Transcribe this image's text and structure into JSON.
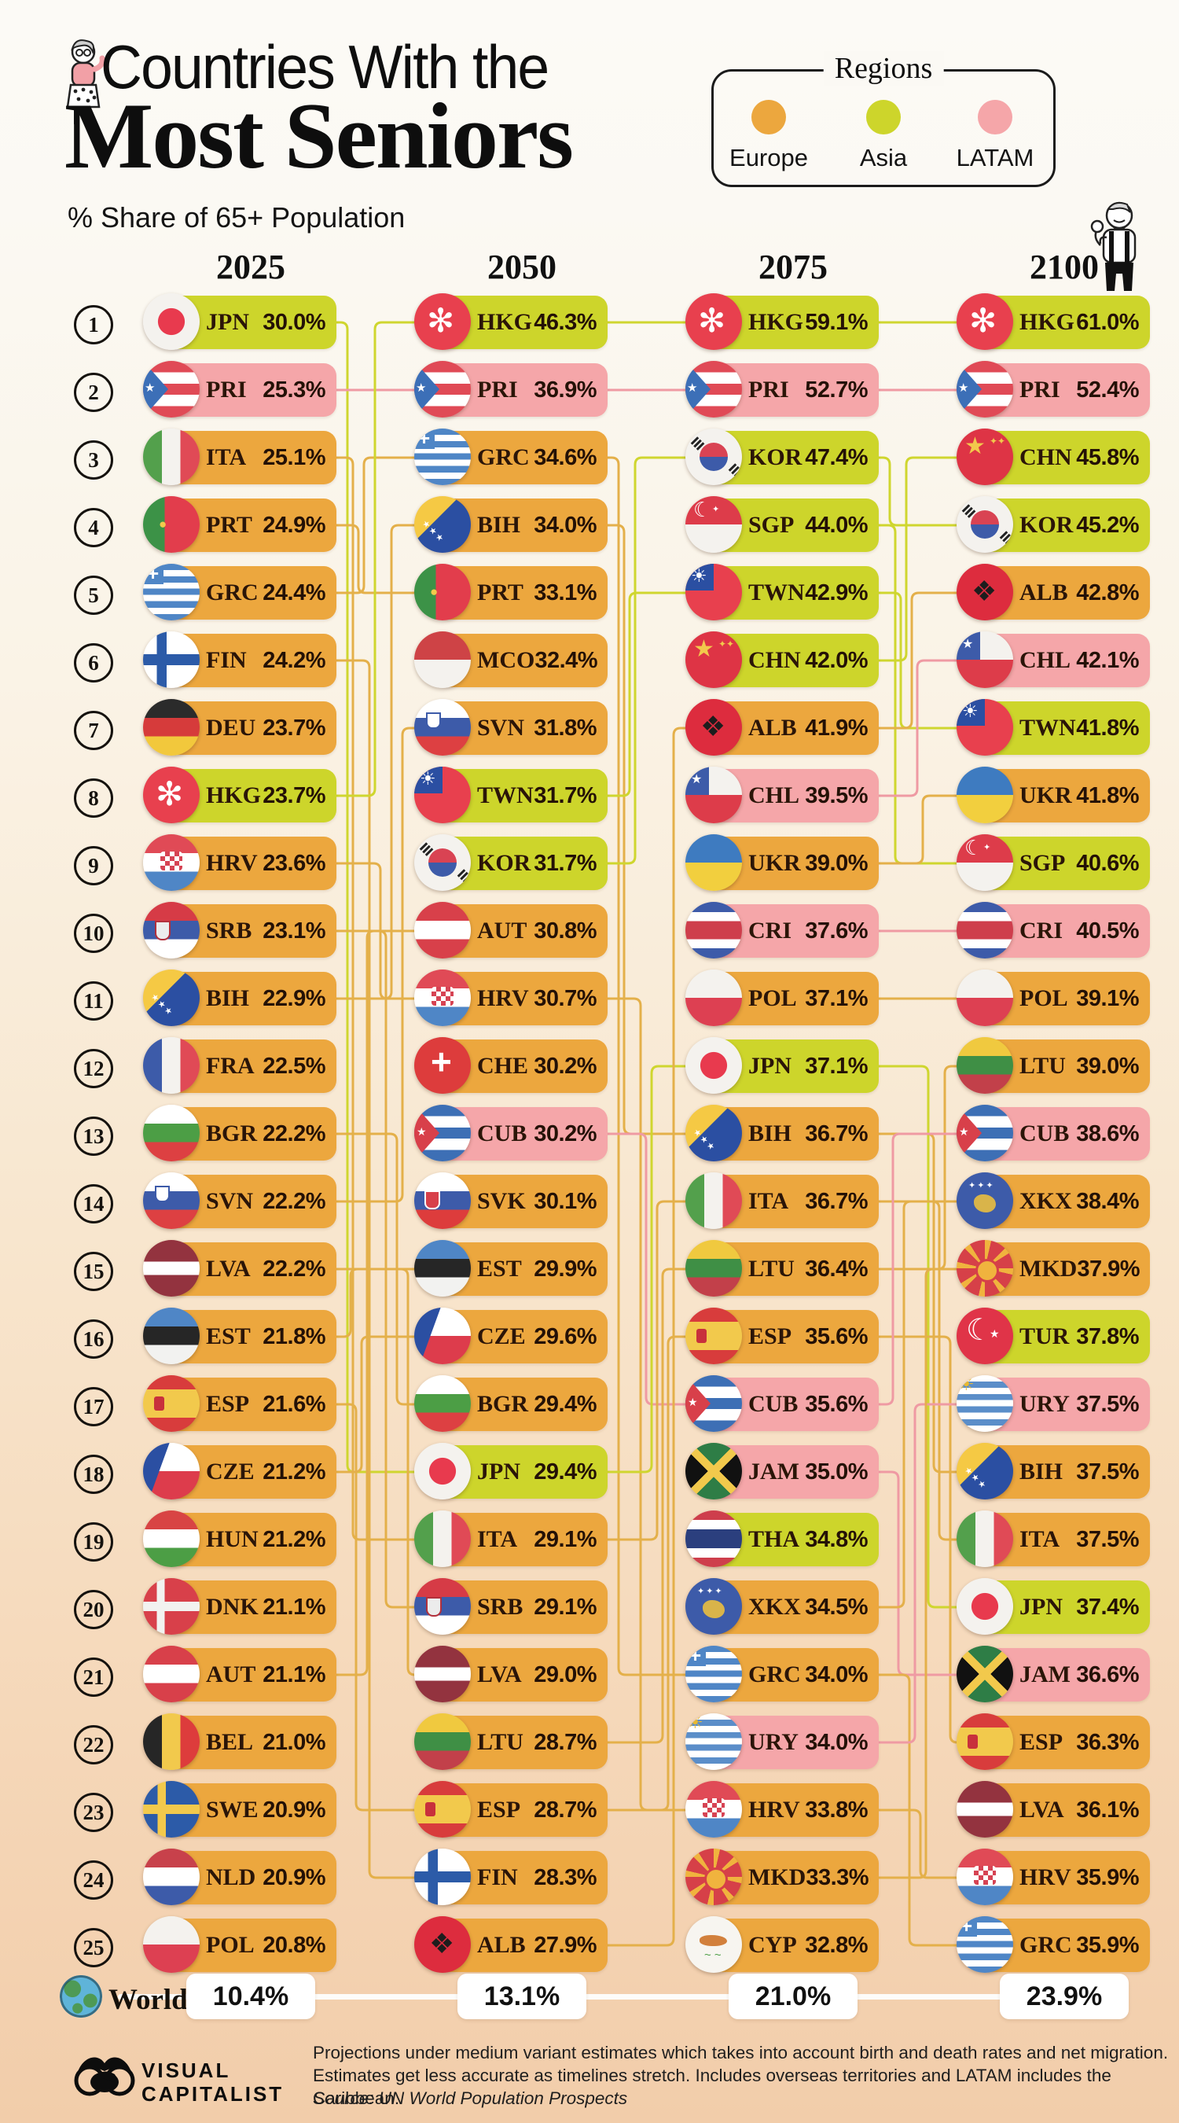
{
  "header": {
    "title_line1": "Countries With the",
    "title_line2": "Most Seniors",
    "subtitle": "% Share of 65+ Population",
    "legend": {
      "title": "Regions",
      "items": [
        {
          "label": "Europe",
          "region": "europe"
        },
        {
          "label": "Asia",
          "region": "asia"
        },
        {
          "label": "LATAM",
          "region": "latam"
        }
      ]
    }
  },
  "colors": {
    "europe": "#ECA73E",
    "asia": "#CDD52B",
    "latam": "#F5A6A9",
    "line_europe": "#E4B04A",
    "line_asia": "#CFD62F",
    "line_latam": "#EF9AA3",
    "text": "#2B1508",
    "background_top": "#FCFAF6",
    "background_bottom": "#F2CDAA"
  },
  "chart_data": {
    "type": "table",
    "title": "Countries With the Most Seniors",
    "subtitle": "% Share of 65+ Population",
    "unit": "% share of population aged 65+",
    "regions_legend": [
      "Europe",
      "Asia",
      "LATAM"
    ],
    "columns": [
      {
        "year": "2025",
        "entries": [
          {
            "rank": 1,
            "code": "JPN",
            "value": "30.0%",
            "region": "asia"
          },
          {
            "rank": 2,
            "code": "PRI",
            "value": "25.3%",
            "region": "latam"
          },
          {
            "rank": 3,
            "code": "ITA",
            "value": "25.1%",
            "region": "europe"
          },
          {
            "rank": 4,
            "code": "PRT",
            "value": "24.9%",
            "region": "europe"
          },
          {
            "rank": 5,
            "code": "GRC",
            "value": "24.4%",
            "region": "europe"
          },
          {
            "rank": 6,
            "code": "FIN",
            "value": "24.2%",
            "region": "europe"
          },
          {
            "rank": 7,
            "code": "DEU",
            "value": "23.7%",
            "region": "europe"
          },
          {
            "rank": 8,
            "code": "HKG",
            "value": "23.7%",
            "region": "asia"
          },
          {
            "rank": 9,
            "code": "HRV",
            "value": "23.6%",
            "region": "europe"
          },
          {
            "rank": 10,
            "code": "SRB",
            "value": "23.1%",
            "region": "europe"
          },
          {
            "rank": 11,
            "code": "BIH",
            "value": "22.9%",
            "region": "europe"
          },
          {
            "rank": 12,
            "code": "FRA",
            "value": "22.5%",
            "region": "europe"
          },
          {
            "rank": 13,
            "code": "BGR",
            "value": "22.2%",
            "region": "europe"
          },
          {
            "rank": 14,
            "code": "SVN",
            "value": "22.2%",
            "region": "europe"
          },
          {
            "rank": 15,
            "code": "LVA",
            "value": "22.2%",
            "region": "europe"
          },
          {
            "rank": 16,
            "code": "EST",
            "value": "21.8%",
            "region": "europe"
          },
          {
            "rank": 17,
            "code": "ESP",
            "value": "21.6%",
            "region": "europe"
          },
          {
            "rank": 18,
            "code": "CZE",
            "value": "21.2%",
            "region": "europe"
          },
          {
            "rank": 19,
            "code": "HUN",
            "value": "21.2%",
            "region": "europe"
          },
          {
            "rank": 20,
            "code": "DNK",
            "value": "21.1%",
            "region": "europe"
          },
          {
            "rank": 21,
            "code": "AUT",
            "value": "21.1%",
            "region": "europe"
          },
          {
            "rank": 22,
            "code": "BEL",
            "value": "21.0%",
            "region": "europe"
          },
          {
            "rank": 23,
            "code": "SWE",
            "value": "20.9%",
            "region": "europe"
          },
          {
            "rank": 24,
            "code": "NLD",
            "value": "20.9%",
            "region": "europe"
          },
          {
            "rank": 25,
            "code": "POL",
            "value": "20.8%",
            "region": "europe"
          }
        ]
      },
      {
        "year": "2050",
        "entries": [
          {
            "rank": 1,
            "code": "HKG",
            "value": "46.3%",
            "region": "asia"
          },
          {
            "rank": 2,
            "code": "PRI",
            "value": "36.9%",
            "region": "latam"
          },
          {
            "rank": 3,
            "code": "GRC",
            "value": "34.6%",
            "region": "europe"
          },
          {
            "rank": 4,
            "code": "BIH",
            "value": "34.0%",
            "region": "europe"
          },
          {
            "rank": 5,
            "code": "PRT",
            "value": "33.1%",
            "region": "europe"
          },
          {
            "rank": 6,
            "code": "MCO",
            "value": "32.4%",
            "region": "europe"
          },
          {
            "rank": 7,
            "code": "SVN",
            "value": "31.8%",
            "region": "europe"
          },
          {
            "rank": 8,
            "code": "TWN",
            "value": "31.7%",
            "region": "asia"
          },
          {
            "rank": 9,
            "code": "KOR",
            "value": "31.7%",
            "region": "asia"
          },
          {
            "rank": 10,
            "code": "AUT",
            "value": "30.8%",
            "region": "europe"
          },
          {
            "rank": 11,
            "code": "HRV",
            "value": "30.7%",
            "region": "europe"
          },
          {
            "rank": 12,
            "code": "CHE",
            "value": "30.2%",
            "region": "europe"
          },
          {
            "rank": 13,
            "code": "CUB",
            "value": "30.2%",
            "region": "latam"
          },
          {
            "rank": 14,
            "code": "SVK",
            "value": "30.1%",
            "region": "europe"
          },
          {
            "rank": 15,
            "code": "EST",
            "value": "29.9%",
            "region": "europe"
          },
          {
            "rank": 16,
            "code": "CZE",
            "value": "29.6%",
            "region": "europe"
          },
          {
            "rank": 17,
            "code": "BGR",
            "value": "29.4%",
            "region": "europe"
          },
          {
            "rank": 18,
            "code": "JPN",
            "value": "29.4%",
            "region": "asia"
          },
          {
            "rank": 19,
            "code": "ITA",
            "value": "29.1%",
            "region": "europe"
          },
          {
            "rank": 20,
            "code": "SRB",
            "value": "29.1%",
            "region": "europe"
          },
          {
            "rank": 21,
            "code": "LVA",
            "value": "29.0%",
            "region": "europe"
          },
          {
            "rank": 22,
            "code": "LTU",
            "value": "28.7%",
            "region": "europe"
          },
          {
            "rank": 23,
            "code": "ESP",
            "value": "28.7%",
            "region": "europe"
          },
          {
            "rank": 24,
            "code": "FIN",
            "value": "28.3%",
            "region": "europe"
          },
          {
            "rank": 25,
            "code": "ALB",
            "value": "27.9%",
            "region": "europe"
          }
        ]
      },
      {
        "year": "2075",
        "entries": [
          {
            "rank": 1,
            "code": "HKG",
            "value": "59.1%",
            "region": "asia"
          },
          {
            "rank": 2,
            "code": "PRI",
            "value": "52.7%",
            "region": "latam"
          },
          {
            "rank": 3,
            "code": "KOR",
            "value": "47.4%",
            "region": "asia"
          },
          {
            "rank": 4,
            "code": "SGP",
            "value": "44.0%",
            "region": "asia"
          },
          {
            "rank": 5,
            "code": "TWN",
            "value": "42.9%",
            "region": "asia"
          },
          {
            "rank": 6,
            "code": "CHN",
            "value": "42.0%",
            "region": "asia"
          },
          {
            "rank": 7,
            "code": "ALB",
            "value": "41.9%",
            "region": "europe"
          },
          {
            "rank": 8,
            "code": "CHL",
            "value": "39.5%",
            "region": "latam"
          },
          {
            "rank": 9,
            "code": "UKR",
            "value": "39.0%",
            "region": "europe"
          },
          {
            "rank": 10,
            "code": "CRI",
            "value": "37.6%",
            "region": "latam"
          },
          {
            "rank": 11,
            "code": "POL",
            "value": "37.1%",
            "region": "europe"
          },
          {
            "rank": 12,
            "code": "JPN",
            "value": "37.1%",
            "region": "asia"
          },
          {
            "rank": 13,
            "code": "BIH",
            "value": "36.7%",
            "region": "europe"
          },
          {
            "rank": 14,
            "code": "ITA",
            "value": "36.7%",
            "region": "europe"
          },
          {
            "rank": 15,
            "code": "LTU",
            "value": "36.4%",
            "region": "europe"
          },
          {
            "rank": 16,
            "code": "ESP",
            "value": "35.6%",
            "region": "europe"
          },
          {
            "rank": 17,
            "code": "CUB",
            "value": "35.6%",
            "region": "latam"
          },
          {
            "rank": 18,
            "code": "JAM",
            "value": "35.0%",
            "region": "latam"
          },
          {
            "rank": 19,
            "code": "THA",
            "value": "34.8%",
            "region": "asia"
          },
          {
            "rank": 20,
            "code": "XKX",
            "value": "34.5%",
            "region": "europe"
          },
          {
            "rank": 21,
            "code": "GRC",
            "value": "34.0%",
            "region": "europe"
          },
          {
            "rank": 22,
            "code": "URY",
            "value": "34.0%",
            "region": "latam"
          },
          {
            "rank": 23,
            "code": "HRV",
            "value": "33.8%",
            "region": "europe"
          },
          {
            "rank": 24,
            "code": "MKD",
            "value": "33.3%",
            "region": "europe"
          },
          {
            "rank": 25,
            "code": "CYP",
            "value": "32.8%",
            "region": "europe"
          }
        ]
      },
      {
        "year": "2100",
        "entries": [
          {
            "rank": 1,
            "code": "HKG",
            "value": "61.0%",
            "region": "asia"
          },
          {
            "rank": 2,
            "code": "PRI",
            "value": "52.4%",
            "region": "latam"
          },
          {
            "rank": 3,
            "code": "CHN",
            "value": "45.8%",
            "region": "asia"
          },
          {
            "rank": 4,
            "code": "KOR",
            "value": "45.2%",
            "region": "asia"
          },
          {
            "rank": 5,
            "code": "ALB",
            "value": "42.8%",
            "region": "europe"
          },
          {
            "rank": 6,
            "code": "CHL",
            "value": "42.1%",
            "region": "latam"
          },
          {
            "rank": 7,
            "code": "TWN",
            "value": "41.8%",
            "region": "asia"
          },
          {
            "rank": 8,
            "code": "UKR",
            "value": "41.8%",
            "region": "europe"
          },
          {
            "rank": 9,
            "code": "SGP",
            "value": "40.6%",
            "region": "asia"
          },
          {
            "rank": 10,
            "code": "CRI",
            "value": "40.5%",
            "region": "latam"
          },
          {
            "rank": 11,
            "code": "POL",
            "value": "39.1%",
            "region": "europe"
          },
          {
            "rank": 12,
            "code": "LTU",
            "value": "39.0%",
            "region": "europe"
          },
          {
            "rank": 13,
            "code": "CUB",
            "value": "38.6%",
            "region": "latam"
          },
          {
            "rank": 14,
            "code": "XKX",
            "value": "38.4%",
            "region": "europe"
          },
          {
            "rank": 15,
            "code": "MKD",
            "value": "37.9%",
            "region": "europe"
          },
          {
            "rank": 16,
            "code": "TUR",
            "value": "37.8%",
            "region": "asia"
          },
          {
            "rank": 17,
            "code": "URY",
            "value": "37.5%",
            "region": "latam"
          },
          {
            "rank": 18,
            "code": "BIH",
            "value": "37.5%",
            "region": "europe"
          },
          {
            "rank": 19,
            "code": "ITA",
            "value": "37.5%",
            "region": "europe"
          },
          {
            "rank": 20,
            "code": "JPN",
            "value": "37.4%",
            "region": "asia"
          },
          {
            "rank": 21,
            "code": "JAM",
            "value": "36.6%",
            "region": "latam"
          },
          {
            "rank": 22,
            "code": "ESP",
            "value": "36.3%",
            "region": "europe"
          },
          {
            "rank": 23,
            "code": "LVA",
            "value": "36.1%",
            "region": "europe"
          },
          {
            "rank": 24,
            "code": "HRV",
            "value": "35.9%",
            "region": "europe"
          },
          {
            "rank": 25,
            "code": "GRC",
            "value": "35.9%",
            "region": "europe"
          }
        ]
      }
    ],
    "world": {
      "label": "World",
      "values": [
        "10.4%",
        "13.1%",
        "21.0%",
        "23.9%"
      ]
    }
  },
  "footer": {
    "brand_line1": "VISUAL",
    "brand_line2": "CAPITALIST",
    "note_line1": "Projections under medium variant estimates which takes into account birth and death rates and net migration.",
    "note_line2": "Estimates get less accurate as timelines stretch. Includes overseas territories and LATAM includes the Caribbean.",
    "source": "Source: UN World Population Prospects"
  }
}
